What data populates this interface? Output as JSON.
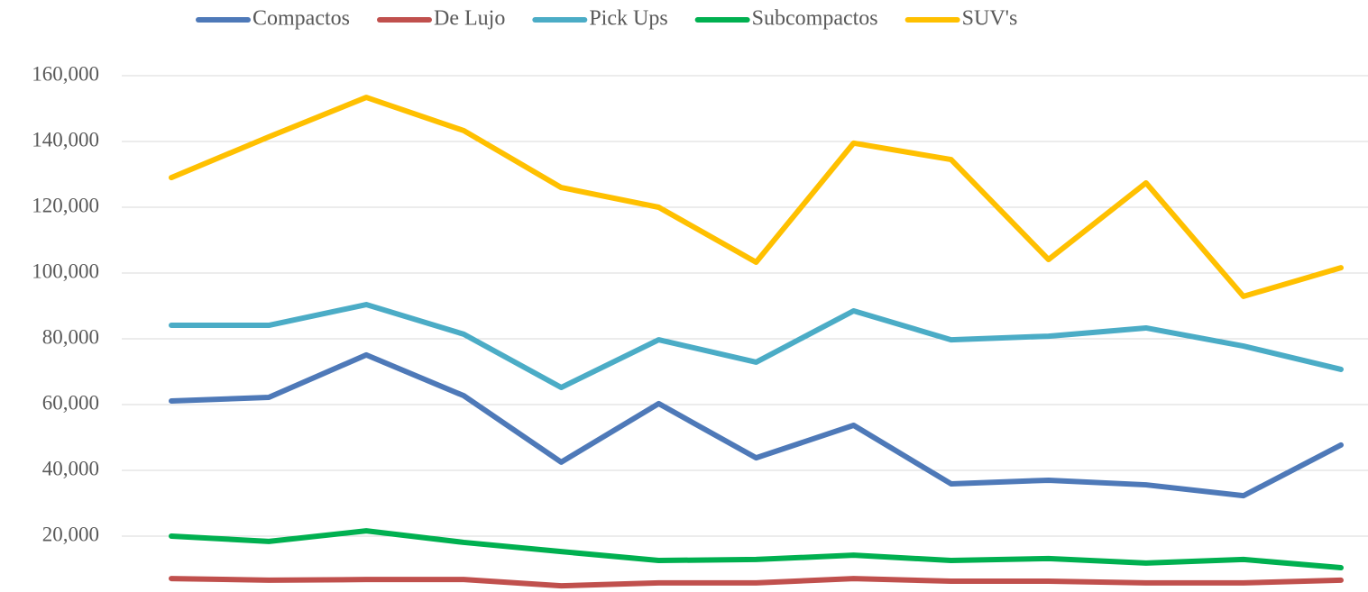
{
  "chart_data": {
    "type": "line",
    "categories": [
      null,
      null,
      null,
      null,
      null,
      null,
      null,
      null,
      null,
      null,
      null,
      null,
      null
    ],
    "series": [
      {
        "name": "Compactos",
        "color": "#4e79b8",
        "values": [
          61100,
          62200,
          75100,
          62700,
          42500,
          60300,
          43800,
          53700,
          35900,
          37000,
          35600,
          32300,
          47700
        ]
      },
      {
        "name": "De Lujo",
        "color": "#c0504d",
        "values": [
          7100,
          6600,
          6800,
          6800,
          4900,
          5800,
          5800,
          7100,
          6300,
          6300,
          5800,
          5800,
          6600
        ]
      },
      {
        "name": "Pick Ups",
        "color": "#4bacc6",
        "values": [
          84100,
          84100,
          90400,
          81400,
          65200,
          79700,
          72900,
          88500,
          79700,
          80800,
          83300,
          77800,
          70700
        ]
      },
      {
        "name": "Subcompactos",
        "color": "#00b050",
        "values": [
          20000,
          18400,
          21600,
          18100,
          15300,
          12600,
          12900,
          14200,
          12600,
          13200,
          11800,
          12900,
          10400
        ]
      },
      {
        "name": "SUV's",
        "color": "#ffc000",
        "values": [
          129000,
          141400,
          153400,
          143300,
          126000,
          120000,
          103300,
          139500,
          134500,
          104100,
          127400,
          92900,
          101600
        ]
      }
    ],
    "ylim": [
      0,
      160000
    ],
    "yticks": [
      0,
      {
        "value": 20000,
        "label": "20,000"
      },
      {
        "value": 40000,
        "label": "40,000"
      },
      {
        "value": 60000,
        "label": "60,000"
      },
      {
        "value": 80000,
        "label": "80,000"
      },
      {
        "value": 100000,
        "label": "100,000"
      },
      {
        "value": 120000,
        "label": "120,000"
      },
      {
        "value": 140000,
        "label": "140,000"
      },
      {
        "value": 160000,
        "label": "160,000"
      }
    ],
    "grid": true,
    "legend": "top"
  }
}
